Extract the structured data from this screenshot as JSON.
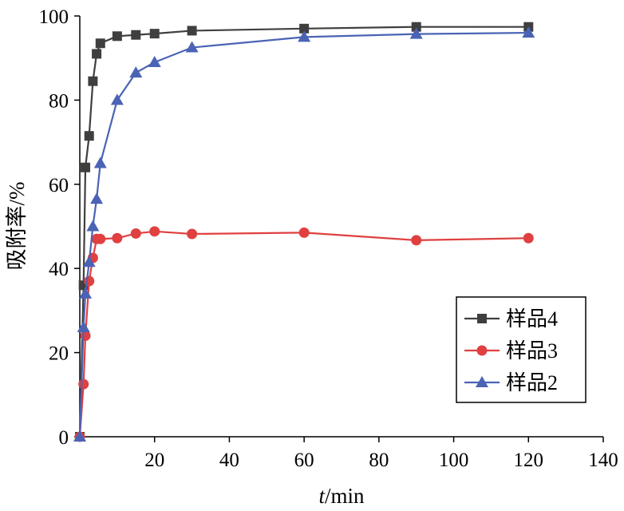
{
  "chart_data": {
    "type": "line",
    "title": "",
    "xlabel_italic": "t",
    "xlabel_unit": "/min",
    "ylabel": "吸附率/%",
    "xlim": [
      0,
      140
    ],
    "ylim": [
      0,
      100
    ],
    "xticks": [
      20,
      40,
      60,
      80,
      100,
      120,
      140
    ],
    "xtick_labels": [
      "20",
      "40",
      "60",
      "80",
      "100",
      "120",
      "140"
    ],
    "yticks": [
      0,
      20,
      40,
      60,
      80,
      100
    ],
    "ytick_labels": [
      "0",
      "20",
      "40",
      "60",
      "80",
      "100"
    ],
    "grid": false,
    "legend_position": "lower-right",
    "series": [
      {
        "name": "样品4",
        "color": "#3f3f3f",
        "marker": "square",
        "x": [
          0,
          1,
          1.5,
          2.5,
          3.5,
          4.5,
          5.5,
          10,
          15,
          20,
          30,
          60,
          90,
          120
        ],
        "y": [
          0,
          36,
          64,
          71.5,
          84.5,
          91,
          93.5,
          95.2,
          95.5,
          95.8,
          96.5,
          97,
          97.4,
          97.4
        ]
      },
      {
        "name": "样品3",
        "color": "#e04040",
        "marker": "circle",
        "x": [
          0,
          1,
          1.5,
          2.5,
          3.5,
          4.5,
          5.5,
          10,
          15,
          20,
          30,
          60,
          90,
          120
        ],
        "y": [
          0,
          12.5,
          24,
          37,
          42.5,
          47,
          47,
          47.2,
          48.3,
          48.8,
          48.2,
          48.5,
          46.7,
          47.2
        ]
      },
      {
        "name": "样品2",
        "color": "#4a63b5",
        "marker": "triangle",
        "x": [
          0,
          1,
          1.5,
          2.5,
          3.5,
          4.5,
          5.5,
          10,
          15,
          20,
          30,
          60,
          90,
          120
        ],
        "y": [
          0,
          26,
          34,
          41.5,
          50,
          56.5,
          65,
          80,
          86.5,
          89,
          92.5,
          95,
          95.7,
          96
        ]
      }
    ]
  }
}
